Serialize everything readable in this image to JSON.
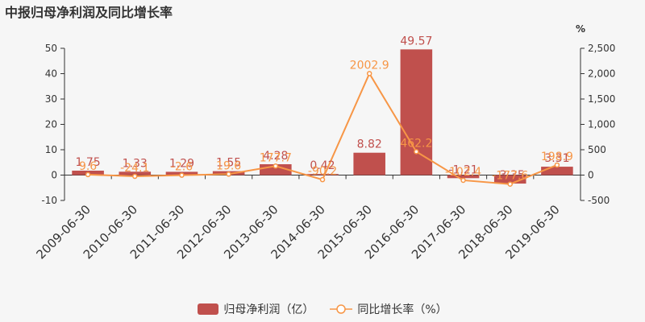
{
  "title": "中报归母净利润及同比增长率",
  "legend": {
    "bar_label": "归母净利润（亿）",
    "line_label": "同比增长率（%）"
  },
  "colors": {
    "bar": "#c0504d",
    "line": "#f79646",
    "bar_label": "#c0504d",
    "line_label": "#f79646"
  },
  "chart_data": {
    "type": "bar",
    "categories": [
      "2009-06-30",
      "2010-06-30",
      "2011-06-30",
      "2012-06-30",
      "2013-06-30",
      "2014-06-30",
      "2015-06-30",
      "2016-06-30",
      "2017-06-30",
      "2018-06-30",
      "2019-06-30"
    ],
    "series": [
      {
        "name": "归母净利润（亿）",
        "type": "bar",
        "axis": "left",
        "values": [
          1.75,
          1.33,
          1.29,
          1.55,
          4.28,
          0.42,
          8.82,
          49.57,
          -1.21,
          -3.35,
          3.31
        ],
        "labels": [
          "1.75",
          "1.33",
          "1.29",
          "1.55",
          "4.28",
          "0.42",
          "8.82",
          "49.57",
          "-1.21",
          "-3.35",
          "3.31"
        ]
      },
      {
        "name": "同比增长率（%）",
        "type": "line",
        "axis": "right",
        "values": [
          9.6,
          -24.1,
          -2.6,
          19.6,
          177.7,
          -90.2,
          2002.9,
          462.2,
          -102.4,
          -177.6,
          198.9
        ],
        "labels": [
          "9.6",
          "-24.1",
          "-2.6",
          "19.6",
          "177.7",
          "-90.2",
          "2002.9",
          "462.2",
          "-102.4",
          "-177.6",
          "198.9"
        ]
      }
    ],
    "y_left": {
      "min": -10,
      "max": 50,
      "ticks": [
        "-10",
        "0",
        "10",
        "20",
        "30",
        "40",
        "50"
      ]
    },
    "y_right": {
      "min": -500,
      "max": 2500,
      "unit": "%",
      "ticks": [
        "-500",
        "0",
        "500",
        "1,000",
        "1,500",
        "2,000",
        "2,500"
      ]
    },
    "xlabel": "",
    "ylabel": "",
    "grid": false,
    "legend_position": "bottom"
  }
}
